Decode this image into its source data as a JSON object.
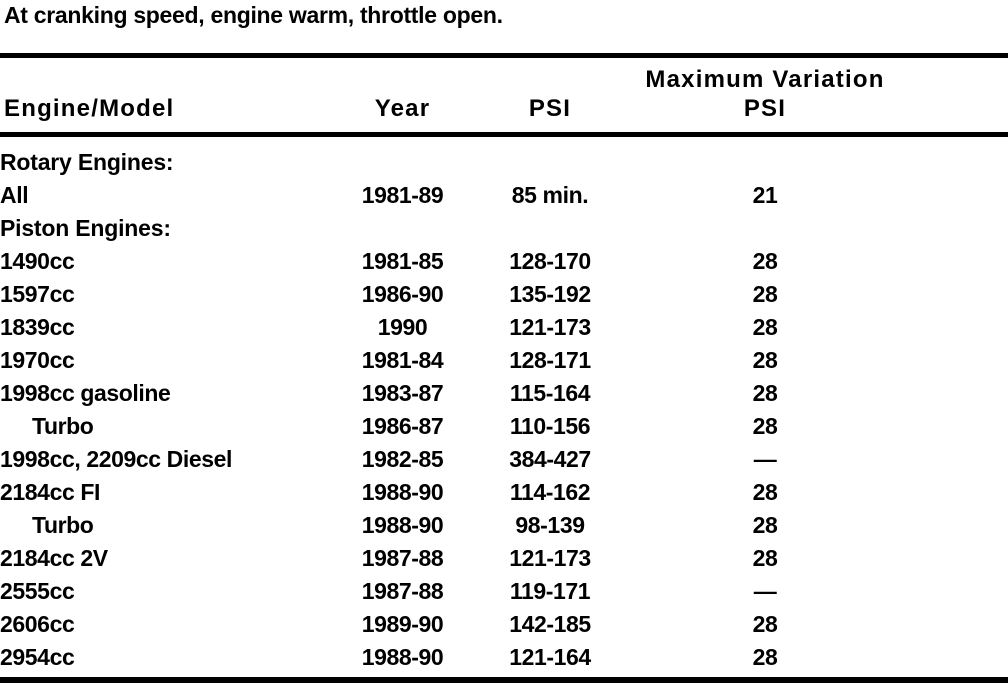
{
  "page": {
    "intro": "At cranking speed, engine warm, throttle open."
  },
  "colors": {
    "text": "#000000",
    "background": "#ffffff"
  },
  "table": {
    "header": {
      "engine_model": "Engine/Model",
      "year": "Year",
      "psi": "PSI",
      "max_variation_line1": "Maximum Variation",
      "max_variation_line2": "PSI"
    },
    "rows": [
      {
        "type": "section",
        "model": "Rotary Engines:"
      },
      {
        "type": "data",
        "model": "All",
        "indent": false,
        "year": "1981-89",
        "psi": "85 min.",
        "max_variation": "21"
      },
      {
        "type": "section",
        "model": "Piston Engines:"
      },
      {
        "type": "data",
        "model": "1490cc",
        "indent": false,
        "year": "1981-85",
        "psi": "128-170",
        "max_variation": "28"
      },
      {
        "type": "data",
        "model": "1597cc",
        "indent": false,
        "year": "1986-90",
        "psi": "135-192",
        "max_variation": "28"
      },
      {
        "type": "data",
        "model": "1839cc",
        "indent": false,
        "year": "1990",
        "psi": "121-173",
        "max_variation": "28"
      },
      {
        "type": "data",
        "model": "1970cc",
        "indent": false,
        "year": "1981-84",
        "psi": "128-171",
        "max_variation": "28"
      },
      {
        "type": "data",
        "model": "1998cc gasoline",
        "indent": false,
        "year": "1983-87",
        "psi": "115-164",
        "max_variation": "28"
      },
      {
        "type": "data",
        "model": "Turbo",
        "indent": true,
        "year": "1986-87",
        "psi": "110-156",
        "max_variation": "28"
      },
      {
        "type": "data",
        "model": "1998cc, 2209cc Diesel",
        "indent": false,
        "year": "1982-85",
        "psi": "384-427",
        "max_variation": "—"
      },
      {
        "type": "data",
        "model": "2184cc FI",
        "indent": false,
        "year": "1988-90",
        "psi": "114-162",
        "max_variation": "28"
      },
      {
        "type": "data",
        "model": "Turbo",
        "indent": true,
        "year": "1988-90",
        "psi": "98-139",
        "max_variation": "28"
      },
      {
        "type": "data",
        "model": "2184cc 2V",
        "indent": false,
        "year": "1987-88",
        "psi": "121-173",
        "max_variation": "28"
      },
      {
        "type": "data",
        "model": "2555cc",
        "indent": false,
        "year": "1987-88",
        "psi": "119-171",
        "max_variation": "—"
      },
      {
        "type": "data",
        "model": "2606cc",
        "indent": false,
        "year": "1989-90",
        "psi": "142-185",
        "max_variation": "28"
      },
      {
        "type": "data",
        "model": "2954cc",
        "indent": false,
        "year": "1988-90",
        "psi": "121-164",
        "max_variation": "28"
      }
    ]
  }
}
